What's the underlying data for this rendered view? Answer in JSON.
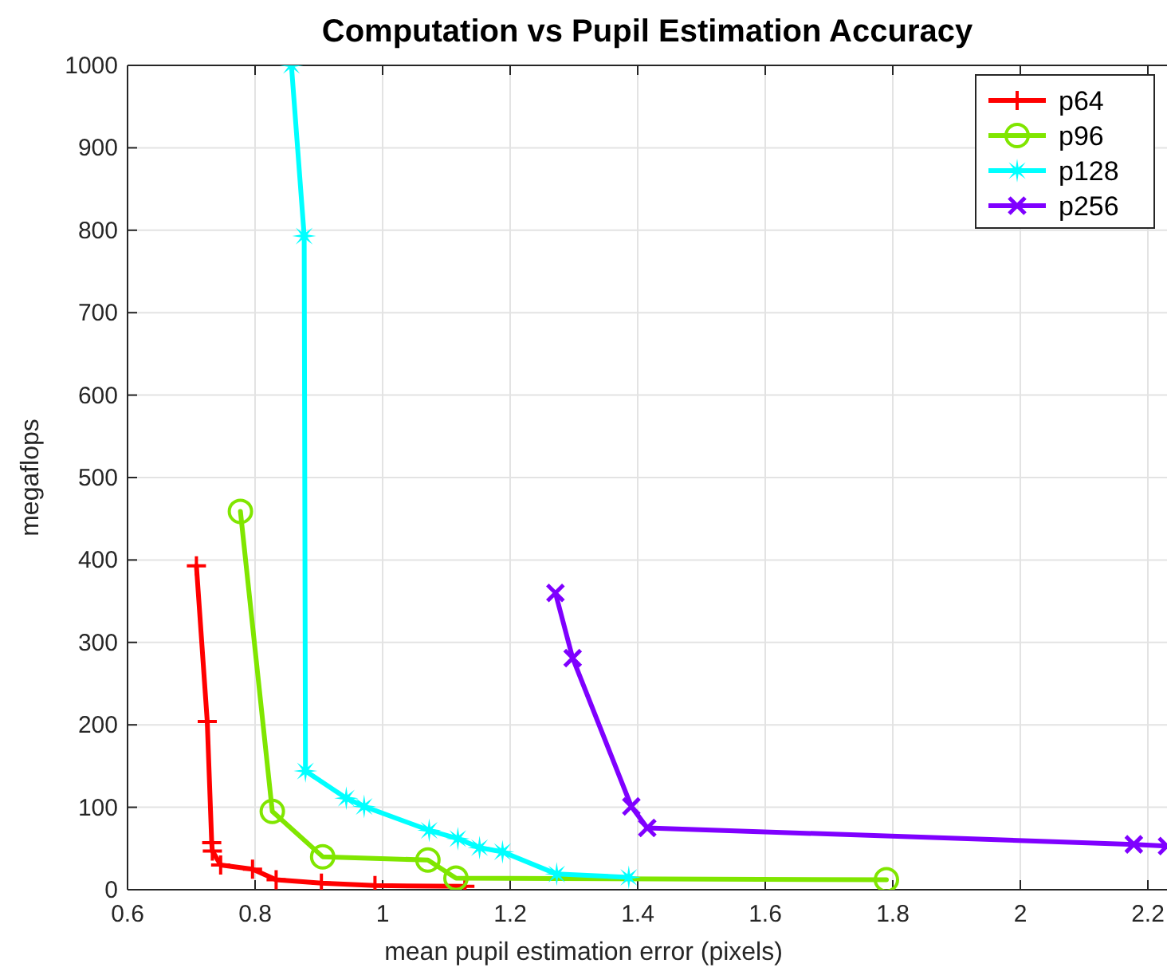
{
  "chart_data": {
    "type": "line",
    "title": "Computation vs Pupil Estimation Accuracy",
    "xlabel": "mean pupil estimation error (pixels)",
    "ylabel": "megaflops",
    "xlim": [
      0.6,
      2.23
    ],
    "ylim": [
      0,
      1000
    ],
    "xticks": [
      0.6,
      0.8,
      1,
      1.2,
      1.4,
      1.6,
      1.8,
      2,
      2.2
    ],
    "yticks": [
      0,
      100,
      200,
      300,
      400,
      500,
      600,
      700,
      800,
      900,
      1000
    ],
    "grid": true,
    "legend": "top right",
    "series": [
      {
        "name": "p64",
        "color": "#ff0000",
        "marker": "plus",
        "x": [
          0.708,
          0.725,
          0.732,
          0.733,
          0.746,
          0.796,
          0.833,
          0.904,
          0.988,
          1.129
        ],
        "values": [
          393,
          204,
          57,
          47,
          30,
          25,
          12,
          8,
          5,
          4
        ]
      },
      {
        "name": "p96",
        "color": "#80e600",
        "marker": "circle",
        "x": [
          0.777,
          0.827,
          0.906,
          1.071,
          1.115,
          1.79
        ],
        "values": [
          459,
          95,
          40,
          36,
          14,
          12
        ]
      },
      {
        "name": "p128",
        "color": "#00ffff",
        "marker": "star",
        "x": [
          0.857,
          0.877,
          0.879,
          0.943,
          0.971,
          1.073,
          1.118,
          1.152,
          1.188,
          1.273,
          1.386
        ],
        "values": [
          1000,
          793,
          144,
          111,
          101,
          72,
          62,
          51,
          46,
          19,
          15
        ]
      },
      {
        "name": "p256",
        "color": "#7f00ff",
        "marker": "cross",
        "x": [
          1.271,
          1.298,
          1.39,
          1.415,
          2.178,
          2.23
        ],
        "values": [
          360,
          281,
          101,
          75,
          55,
          53
        ]
      }
    ]
  }
}
